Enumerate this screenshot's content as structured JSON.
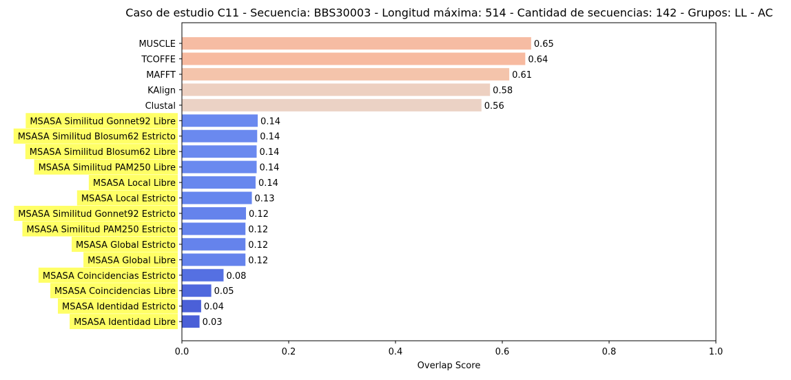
{
  "chart_data": {
    "type": "bar",
    "orientation": "horizontal",
    "title": "Caso de estudio C11 - Secuencia: BBS30003 - Longitud máxima: 514 - Cantidad de secuencias: 142 - Grupos: LL - AC",
    "xlabel": "Overlap Score",
    "ylabel": "",
    "xlim": [
      0,
      1.0
    ],
    "xticks": [
      "0.0",
      "0.2",
      "0.4",
      "0.6",
      "0.8",
      "1.0"
    ],
    "grid": false,
    "highlight_color": "#ffff66",
    "categories": [
      "MUSCLE",
      "TCOFFE",
      "MAFFT",
      "KAlign",
      "Clustal",
      "MSASA Similitud Gonnet92 Libre",
      "MSASA Similitud Blosum62 Estricto",
      "MSASA Similitud Blosum62 Libre",
      "MSASA Similitud PAM250 Libre",
      "MSASA Local Libre",
      "MSASA Local Estricto",
      "MSASA Similitud Gonnet92 Estricto",
      "MSASA Similitud PAM250 Estricto",
      "MSASA Global Estricto",
      "MSASA Global Libre",
      "MSASA Coincidencias Estricto",
      "MSASA Coincidencias Libre",
      "MSASA Identidad Estricto",
      "MSASA Identidad Libre"
    ],
    "values": [
      0.654,
      0.643,
      0.613,
      0.577,
      0.561,
      0.142,
      0.141,
      0.14,
      0.14,
      0.138,
      0.131,
      0.12,
      0.119,
      0.119,
      0.119,
      0.078,
      0.055,
      0.036,
      0.033
    ],
    "value_labels": [
      "0.65",
      "0.64",
      "0.61",
      "0.58",
      "0.56",
      "0.14",
      "0.14",
      "0.14",
      "0.14",
      "0.14",
      "0.13",
      "0.12",
      "0.12",
      "0.12",
      "0.12",
      "0.08",
      "0.05",
      "0.04",
      "0.03"
    ],
    "highlighted": [
      false,
      false,
      false,
      false,
      false,
      true,
      true,
      true,
      true,
      true,
      true,
      true,
      true,
      true,
      true,
      true,
      true,
      true,
      true
    ],
    "colors": [
      "#f6bca3",
      "#f7baa0",
      "#f4c4ab",
      "#edd0c1",
      "#ebd2c5",
      "#6a89ef",
      "#6a89ef",
      "#6a89ef",
      "#6a89ef",
      "#6887ee",
      "#6686ee",
      "#6583ec",
      "#6583ec",
      "#6583ec",
      "#6583ec",
      "#5570e2",
      "#4f68dd",
      "#4b60d8",
      "#4a5fd7"
    ]
  }
}
